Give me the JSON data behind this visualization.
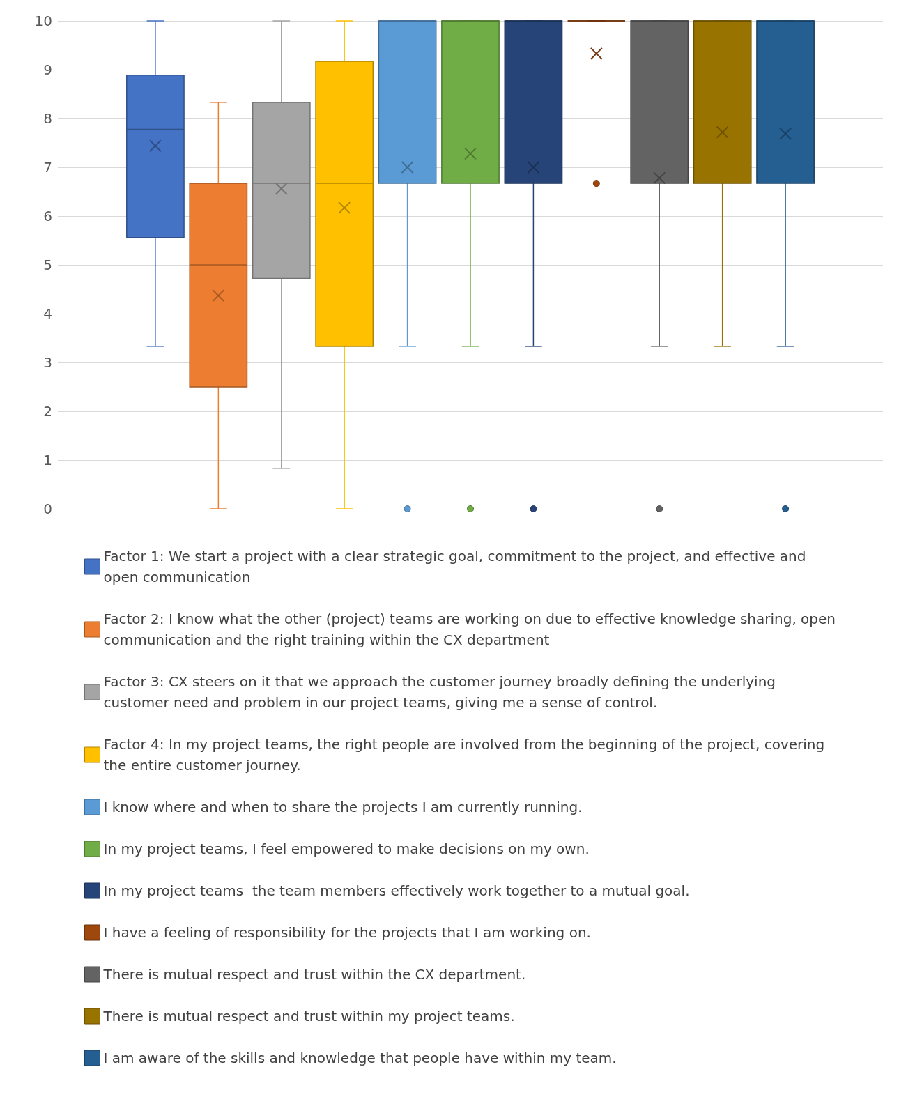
{
  "chart_data": {
    "type": "box",
    "categories": [
      null
    ],
    "ylim": [
      0,
      10
    ],
    "yticks": [
      0,
      1,
      2,
      3,
      4,
      5,
      6,
      7,
      8,
      9,
      10
    ],
    "grid": "y",
    "legend": "bottom",
    "series": [
      {
        "name": "Factor 1: We start a project with a clear strategic goal, commitment to the project, and effective and open communication",
        "color": "#4472c4",
        "boxes": [
          {
            "low": 3.33,
            "q1": 5.56,
            "median": 7.78,
            "q3": 8.89,
            "high": 10,
            "mean": 7.44
          }
        ]
      },
      {
        "name": "Factor 2: I know what the other (project) teams are working on due to effective knowledge sharing, open communication and the right training within the CX department",
        "color": "#ed7d31",
        "boxes": [
          {
            "low": 0,
            "q1": 2.5,
            "median": 5,
            "q3": 6.67,
            "high": 8.33,
            "mean": 4.37
          }
        ]
      },
      {
        "name": "Factor 3: CX steers on it that we approach the customer journey broadly defining the underlying customer need and problem in our project teams, giving me a sense of control.",
        "color": "#a5a5a5",
        "boxes": [
          {
            "low": 0.83,
            "q1": 4.72,
            "median": 6.67,
            "q3": 8.33,
            "high": 10,
            "mean": 6.56
          }
        ]
      },
      {
        "name": "Factor 4: In my project teams, the right people are involved from the beginning of the project, covering the entire customer journey.",
        "color": "#ffc000",
        "boxes": [
          {
            "low": 0,
            "q1": 3.33,
            "median": 6.67,
            "q3": 9.17,
            "high": 10,
            "mean": 6.17
          }
        ]
      },
      {
        "name": "I know where and when to share the projects I am currently running.",
        "color": "#5b9bd5",
        "boxes": [
          {
            "low": 3.33,
            "q1": 6.67,
            "median": 10,
            "q3": 10,
            "high": 10,
            "mean": 7,
            "outliers": [
              0
            ]
          }
        ]
      },
      {
        "name": "In my project teams, I feel empowered to make decisions on my own.",
        "color": "#70ad47",
        "boxes": [
          {
            "low": 3.33,
            "q1": 6.67,
            "median": 10,
            "q3": 10,
            "high": 10,
            "mean": 7.28,
            "outliers": [
              0
            ]
          }
        ]
      },
      {
        "name": "In my project teams  the team members effectively work together to a mutual goal.",
        "color": "#264478",
        "boxes": [
          {
            "low": 3.33,
            "q1": 6.67,
            "median": 10,
            "q3": 10,
            "high": 10,
            "mean": 7,
            "outliers": [
              0
            ]
          }
        ]
      },
      {
        "name": "I have a feeling of responsibility for the projects that I am working on.",
        "color": "#9e480e",
        "boxes": [
          {
            "low": 10,
            "q1": 10,
            "median": 10,
            "q3": 10,
            "high": 10,
            "mean": 9.33,
            "outliers": [
              6.67
            ]
          }
        ]
      },
      {
        "name": "There is mutual respect and trust within the CX department.",
        "color": "#636363",
        "boxes": [
          {
            "low": 3.33,
            "q1": 6.67,
            "median": 10,
            "q3": 10,
            "high": 10,
            "mean": 6.78,
            "outliers": [
              0
            ]
          }
        ]
      },
      {
        "name": "There is mutual respect and trust within my project teams.",
        "color": "#997300",
        "boxes": [
          {
            "low": 3.33,
            "q1": 6.67,
            "median": 10,
            "q3": 10,
            "high": 10,
            "mean": 7.72
          }
        ]
      },
      {
        "name": "I am aware of the skills and knowledge that people have within my team.",
        "color": "#255e91",
        "boxes": [
          {
            "low": 3.33,
            "q1": 6.67,
            "median": 10,
            "q3": 10,
            "high": 10,
            "mean": 7.69,
            "outliers": [
              0
            ]
          }
        ]
      }
    ]
  }
}
